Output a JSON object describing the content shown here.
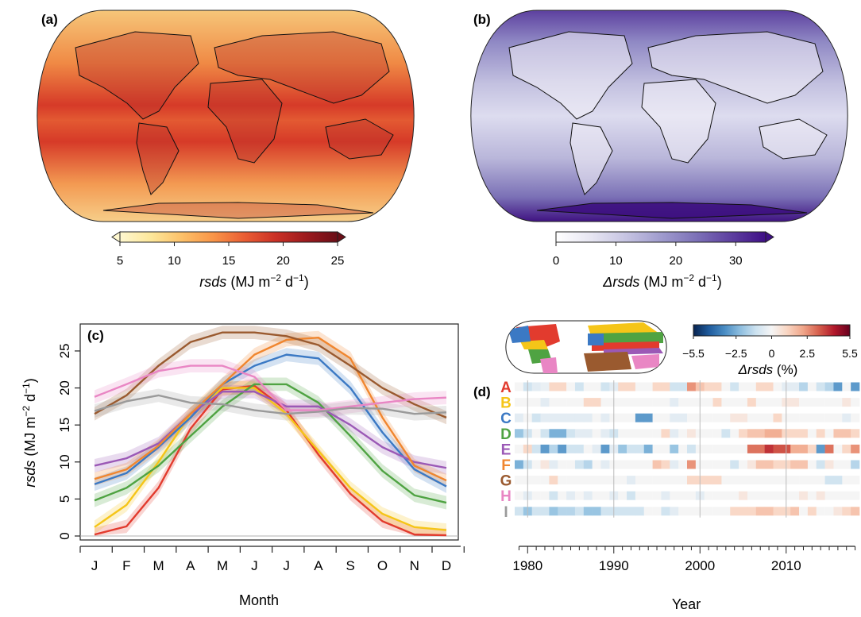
{
  "panels": {
    "a": {
      "label": "(a)",
      "colorbar": {
        "ticks": [
          "5",
          "10",
          "15",
          "20",
          "25"
        ],
        "tick_values": [
          5,
          10,
          15,
          20,
          25
        ],
        "range": [
          5,
          25
        ],
        "extend": "both",
        "title_var": "rsds",
        "title_units": "(MJ m",
        "title_exp1": "−2",
        "title_mid": " d",
        "title_exp2": "−1",
        "title_end": ")",
        "colors": [
          "#fff8d0",
          "#fde79a",
          "#fdc068",
          "#f99548",
          "#ea5e34",
          "#cb3126",
          "#9c1a1e",
          "#6a0e17"
        ]
      }
    },
    "b": {
      "label": "(b)",
      "colorbar": {
        "ticks": [
          "0",
          "10",
          "20",
          "30"
        ],
        "tick_values": [
          0,
          10,
          20,
          30
        ],
        "range": [
          0,
          35
        ],
        "extend": "max",
        "title_var": "Δrsds",
        "title_units": "(MJ m",
        "title_exp1": "−2",
        "title_mid": " d",
        "title_exp2": "−1",
        "title_end": ")",
        "colors": [
          "#ffffff",
          "#e7e6f2",
          "#c6c4e2",
          "#a09cce",
          "#7d72b8",
          "#5e40a0",
          "#3f0f86"
        ]
      }
    },
    "c": {
      "label": "(c)",
      "xlabel": "Month",
      "ylabel_var": "rsds",
      "ylabel_units": "(MJ m",
      "ylabel_exp1": "−2",
      "ylabel_mid": " d",
      "ylabel_exp2": "−1",
      "ylabel_end": ")"
    },
    "d": {
      "label": "(d)",
      "xlabel": "Year",
      "colorbar": {
        "ticks": [
          "−5.5",
          "−2.5",
          "0",
          "2.5",
          "5.5"
        ],
        "tick_values": [
          -5.5,
          -2.5,
          0,
          2.5,
          5.5
        ],
        "range": [
          -5.5,
          5.5
        ],
        "title_var": "Δrsds",
        "title_units": "(%)",
        "colors": [
          "#08234f",
          "#1f5b9d",
          "#4a8dc4",
          "#8ebedf",
          "#cde2f0",
          "#f5f5f5",
          "#f9d5c2",
          "#f0a68a",
          "#d6604d",
          "#b2182b",
          "#67001f"
        ]
      }
    }
  },
  "chart_data": [
    {
      "type": "heatmap",
      "panel": "a",
      "description_var": "rsds",
      "colorbar_range": [
        5,
        25
      ]
    },
    {
      "type": "heatmap",
      "panel": "b",
      "description_var": "Δrsds",
      "colorbar_range": [
        0,
        35
      ]
    },
    {
      "type": "line",
      "panel": "c",
      "categories": [
        "J",
        "F",
        "M",
        "A",
        "M",
        "J",
        "J",
        "A",
        "S",
        "O",
        "N",
        "D"
      ],
      "ylim": [
        0,
        28
      ],
      "yticks": [
        0,
        5,
        10,
        15,
        20,
        25
      ],
      "series": [
        {
          "name": "A",
          "color": "#e23b2e",
          "values": [
            0.2,
            1.3,
            6.5,
            14.5,
            19.8,
            20.3,
            17.0,
            11.0,
            5.7,
            2.0,
            0.2,
            0.1
          ]
        },
        {
          "name": "B",
          "color": "#f5c518",
          "values": [
            1.2,
            4.2,
            10.0,
            16.5,
            20.0,
            20.0,
            16.5,
            11.5,
            6.5,
            3.0,
            1.2,
            0.8
          ]
        },
        {
          "name": "C",
          "color": "#3b79c4",
          "values": [
            7.0,
            8.5,
            12.0,
            16.0,
            20.5,
            23.0,
            24.5,
            24.0,
            20.0,
            14.0,
            9.0,
            6.7
          ]
        },
        {
          "name": "D",
          "color": "#4fa342",
          "values": [
            4.8,
            6.5,
            9.5,
            13.5,
            17.5,
            20.5,
            20.5,
            18.0,
            13.5,
            8.8,
            5.5,
            4.5
          ]
        },
        {
          "name": "E",
          "color": "#9b59b6",
          "values": [
            9.5,
            10.5,
            12.5,
            16.5,
            19.5,
            19.5,
            17.5,
            17.5,
            15.0,
            12.0,
            10.0,
            9.2
          ]
        },
        {
          "name": "F",
          "color": "#f0862f",
          "values": [
            7.7,
            9.0,
            12.2,
            16.5,
            20.5,
            24.5,
            26.5,
            26.8,
            24.0,
            16.0,
            9.5,
            7.5
          ]
        },
        {
          "name": "G",
          "color": "#9a5a2f",
          "values": [
            16.5,
            19.0,
            23.0,
            26.2,
            27.5,
            27.5,
            27.0,
            25.8,
            23.0,
            20.0,
            17.8,
            16.0
          ]
        },
        {
          "name": "H",
          "color": "#e986c4",
          "values": [
            18.8,
            20.5,
            22.3,
            23.0,
            23.0,
            21.5,
            17.0,
            17.0,
            17.5,
            18.0,
            18.5,
            18.7
          ]
        },
        {
          "name": "I",
          "color": "#9a9a9a",
          "values": [
            16.9,
            18.2,
            19.0,
            18.0,
            17.8,
            17.0,
            16.5,
            16.8,
            17.3,
            17.2,
            16.5,
            16.7
          ]
        }
      ]
    },
    {
      "type": "heatmap",
      "panel": "d",
      "rows": [
        "A",
        "B",
        "C",
        "D",
        "E",
        "F",
        "G",
        "H",
        "I"
      ],
      "row_colors": [
        "#e23b2e",
        "#f5c518",
        "#3b79c4",
        "#4fa342",
        "#9b59b6",
        "#f0862f",
        "#9a5a2f",
        "#e986c4",
        "#9a9a9a"
      ],
      "years": [
        1979,
        2018
      ],
      "xticks": [
        1980,
        1990,
        2000,
        2010
      ],
      "value_range": [
        -5.5,
        5.5
      ],
      "values": [
        [
          0,
          -1,
          -0.5,
          -0.3,
          1,
          1,
          0,
          -1,
          0,
          0,
          -1,
          -0.5,
          1,
          1,
          0,
          0,
          1,
          1,
          -1,
          -1,
          2.5,
          1.5,
          1,
          1,
          0,
          -1,
          0,
          0,
          1,
          1,
          0,
          -0.5,
          -0.5,
          -1.5,
          0,
          -1,
          -1.5,
          -3,
          0,
          -3
        ],
        [
          0,
          0,
          0,
          -0.5,
          0,
          0,
          0,
          0,
          1,
          1,
          0,
          0,
          0,
          0,
          0,
          0,
          0,
          0,
          -0.5,
          0,
          0,
          0,
          0,
          1,
          0,
          0,
          0,
          1,
          0,
          0,
          0,
          0.5,
          0.5,
          0,
          0,
          0,
          0,
          0,
          0.5,
          0
        ],
        [
          -0.5,
          0,
          -1,
          -0.5,
          -0.5,
          -0.5,
          -0.5,
          -0.5,
          -0.5,
          0,
          -0.5,
          0,
          0,
          0,
          -3,
          -3,
          0,
          0,
          -0.5,
          -0.5,
          0,
          0,
          0,
          0,
          0,
          0.5,
          0.5,
          0,
          0,
          0,
          1,
          0,
          0,
          0,
          0,
          0,
          0,
          0,
          -0.5,
          0
        ],
        [
          -2,
          -1,
          0,
          -1,
          -2.5,
          -2.5,
          -1,
          -0.5,
          -0.5,
          0,
          -0.5,
          -1,
          0,
          0,
          0,
          0,
          0,
          1,
          -0.5,
          0,
          0.5,
          0,
          0,
          0,
          -1,
          0,
          1,
          1.5,
          1.5,
          2,
          2,
          1,
          1,
          1,
          0,
          1,
          0,
          1.5,
          1.5,
          1
        ],
        [
          0,
          1,
          -1,
          -3,
          -1.5,
          -3,
          -1,
          -1,
          0,
          -0.5,
          -3,
          -0.5,
          -2,
          -1,
          -1,
          -2.5,
          0,
          0,
          -2,
          0,
          -1,
          0,
          0,
          0,
          0,
          0,
          0,
          3,
          3,
          4,
          3.5,
          3.5,
          2,
          2,
          1,
          -3,
          3,
          0,
          1,
          2.5
        ],
        [
          -2.5,
          -1,
          0,
          0.5,
          -0.5,
          0,
          0,
          -1,
          -1.5,
          0,
          -0.5,
          0,
          0,
          0,
          0,
          0,
          1.5,
          1,
          -0.5,
          0,
          2.5,
          0,
          0,
          0,
          0,
          -1,
          0,
          0.5,
          1.5,
          1.5,
          1,
          1,
          1.5,
          1.5,
          0,
          -1,
          0.5,
          0,
          0,
          -1.5
        ],
        [
          0,
          0,
          0,
          0,
          1,
          0,
          0,
          0,
          0,
          0,
          0,
          0,
          0,
          -0.5,
          0,
          0,
          0,
          0,
          0,
          0,
          1,
          1,
          1,
          1,
          0,
          0,
          0,
          0,
          0,
          0,
          0,
          0,
          0,
          0,
          0,
          0,
          -1,
          -1,
          0,
          0
        ],
        [
          0,
          -0.5,
          0,
          0,
          -1,
          0,
          -0.5,
          0,
          -0.5,
          0,
          0,
          -0.5,
          0,
          -1,
          0,
          0,
          0,
          -0.5,
          0,
          0,
          0,
          -0.5,
          0,
          0,
          0,
          0,
          0.5,
          0,
          0,
          0,
          0,
          0,
          0,
          0.5,
          0,
          0.5,
          0,
          0,
          0,
          0
        ],
        [
          -1,
          -2,
          -1,
          -1,
          -2,
          -1.5,
          -1.5,
          -1,
          -2,
          -2,
          -1,
          -1,
          -1,
          -1,
          -1,
          0,
          0,
          -1,
          -0.5,
          0,
          0,
          0,
          0,
          0,
          0,
          1,
          1,
          1,
          1.5,
          1.5,
          1,
          1,
          1.5,
          0,
          1,
          0,
          0,
          0.5,
          1,
          1.5
        ]
      ]
    }
  ]
}
